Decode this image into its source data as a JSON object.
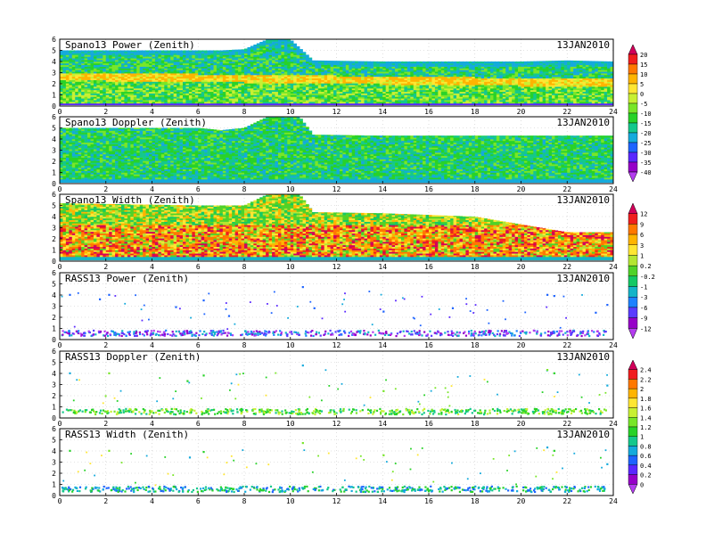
{
  "figure": {
    "date_label": "13JAN2010"
  },
  "chart_data": [
    {
      "type": "heatmap",
      "title": "Spano13 Power (Zenith)",
      "date": "13JAN2010",
      "xlim": [
        0,
        24
      ],
      "ylim": [
        0,
        6
      ],
      "xticks": [
        0,
        2,
        4,
        6,
        8,
        10,
        12,
        14,
        16,
        18,
        20,
        22,
        24
      ],
      "yticks": [
        0,
        1,
        2,
        3,
        4,
        5,
        6
      ],
      "grid": true,
      "colorbar": "power",
      "base_top": [
        [
          0,
          5.0
        ],
        [
          2,
          5.0
        ],
        [
          4,
          5.0
        ],
        [
          6,
          5.0
        ],
        [
          7,
          5.0
        ],
        [
          8,
          5.1
        ],
        [
          9,
          6.0
        ],
        [
          10,
          6.0
        ],
        [
          11,
          4.1
        ],
        [
          14,
          4.0
        ],
        [
          16,
          4.0
        ],
        [
          18,
          4.0
        ],
        [
          20,
          4.0
        ],
        [
          22,
          4.1
        ],
        [
          24,
          4.0
        ]
      ],
      "gaps": [
        [
          [
            8.55,
            8.85
          ],
          [
            4.9,
            6.0
          ]
        ],
        [
          [
            11.2,
            14.0
          ],
          [
            4.1,
            6.0
          ]
        ],
        [
          [
            14.0,
            24.0
          ],
          [
            4.4,
            6.0
          ]
        ]
      ],
      "note": "Band structure: dark blue base near 0.1 km, green-cyan bulk, yellow-orange band ~2.5 km descending to ~2 km"
    },
    {
      "type": "heatmap",
      "title": "Spano13 Doppler (Zenith)",
      "date": "13JAN2010",
      "xlim": [
        0,
        24
      ],
      "ylim": [
        0,
        6
      ],
      "xticks": [
        0,
        2,
        4,
        6,
        8,
        10,
        12,
        14,
        16,
        18,
        20,
        22,
        24
      ],
      "yticks": [
        0,
        1,
        2,
        3,
        4,
        5,
        6
      ],
      "grid": true,
      "colorbar": "power",
      "base_top": [
        [
          0,
          5.0
        ],
        [
          6,
          5.0
        ],
        [
          7,
          4.8
        ],
        [
          8,
          5.0
        ],
        [
          9,
          6.0
        ],
        [
          10.4,
          6.0
        ],
        [
          11,
          4.4
        ],
        [
          14,
          4.3
        ],
        [
          18,
          4.3
        ],
        [
          22,
          4.3
        ],
        [
          24,
          4.3
        ]
      ]
    },
    {
      "type": "heatmap",
      "title": "Spano13 Width (Zenith)",
      "date": "13JAN2010",
      "xlim": [
        0,
        24
      ],
      "ylim": [
        0,
        6
      ],
      "xticks": [
        0,
        2,
        4,
        6,
        8,
        10,
        12,
        14,
        16,
        18,
        20,
        22,
        24
      ],
      "yticks": [
        0,
        1,
        2,
        3,
        4,
        5,
        6
      ],
      "grid": true,
      "colorbar": "width",
      "base_top": [
        [
          0,
          5.2
        ],
        [
          6,
          5.0
        ],
        [
          8,
          5.0
        ],
        [
          9,
          6.0
        ],
        [
          10.4,
          6.0
        ],
        [
          11,
          4.4
        ],
        [
          14,
          4.3
        ],
        [
          18,
          4.0
        ],
        [
          22,
          2.6
        ],
        [
          24,
          2.6
        ]
      ]
    },
    {
      "type": "scatter",
      "title": "RASS13 Power (Zenith)",
      "date": "13JAN2010",
      "xlim": [
        0,
        24
      ],
      "ylim": [
        0,
        6
      ],
      "xticks": [
        0,
        2,
        4,
        6,
        8,
        10,
        12,
        14,
        16,
        18,
        20,
        22,
        24
      ],
      "yticks": [
        0,
        1,
        2,
        3,
        4,
        5,
        6
      ],
      "grid": true,
      "colorbar": "width",
      "band": [
        0.4,
        0.9
      ],
      "points": [
        [
          0.4,
          4.1
        ],
        [
          2.1,
          4.1
        ],
        [
          1.7,
          3.7
        ],
        [
          5.0,
          3.0
        ],
        [
          6.2,
          3.6
        ],
        [
          7.3,
          2.2
        ],
        [
          10.5,
          4.8
        ],
        [
          11.0,
          2.9
        ],
        [
          14.0,
          2.6
        ],
        [
          17.0,
          2.9
        ],
        [
          21.1,
          4.1
        ],
        [
          21.4,
          4.0
        ],
        [
          23.2,
          2.5
        ],
        [
          23.7,
          3.2
        ]
      ]
    },
    {
      "type": "scatter",
      "title": "RASS13 Doppler (Zenith)",
      "date": "13JAN2010",
      "xlim": [
        0,
        24
      ],
      "ylim": [
        0,
        6
      ],
      "xticks": [
        0,
        2,
        4,
        6,
        8,
        10,
        12,
        14,
        16,
        18,
        20,
        22,
        24
      ],
      "yticks": [
        0,
        1,
        2,
        3,
        4,
        5,
        6
      ],
      "grid": true,
      "colorbar": "rass",
      "band": [
        0.4,
        0.9
      ],
      "points": [
        [
          0.4,
          4.1
        ],
        [
          2.1,
          4.1
        ],
        [
          5.5,
          3.4
        ],
        [
          6.2,
          3.9
        ],
        [
          10.5,
          4.8
        ],
        [
          14.0,
          2.5
        ],
        [
          21.1,
          4.4
        ],
        [
          21.4,
          4.1
        ],
        [
          23.7,
          3.0
        ]
      ]
    },
    {
      "type": "scatter",
      "title": "RASS13 Width (Zenith)",
      "date": "13JAN2010",
      "xlim": [
        0,
        24
      ],
      "ylim": [
        0,
        6
      ],
      "xticks": [
        0,
        2,
        4,
        6,
        8,
        10,
        12,
        14,
        16,
        18,
        20,
        22,
        24
      ],
      "yticks": [
        0,
        1,
        2,
        3,
        4,
        5,
        6
      ],
      "grid": true,
      "colorbar": "rass",
      "band": [
        0.4,
        0.9
      ],
      "points": [
        [
          0.4,
          4.1
        ],
        [
          2.1,
          4.1
        ],
        [
          5.6,
          3.5
        ],
        [
          6.2,
          4.0
        ],
        [
          10.5,
          4.8
        ],
        [
          14.0,
          3.7
        ],
        [
          21.1,
          4.4
        ],
        [
          21.4,
          4.1
        ],
        [
          23.7,
          2.9
        ]
      ]
    }
  ],
  "colorbars": {
    "power": {
      "labels": [
        "20",
        "15",
        "10",
        "5",
        "0",
        "-5",
        "-10",
        "-15",
        "-20",
        "-25",
        "-30",
        "-35",
        "-40"
      ],
      "colors": [
        "#d2005a",
        "#f01e1e",
        "#ff7800",
        "#ffb400",
        "#ffe632",
        "#c8f032",
        "#78e628",
        "#28d228",
        "#14c88c",
        "#14aadc",
        "#1e64ff",
        "#5a28ff",
        "#9600c8",
        "#b43cf0"
      ]
    },
    "width": {
      "labels": [
        "12",
        "9",
        "6",
        "3",
        "1",
        "0.2",
        "-0.2",
        "-1",
        "-3",
        "-6",
        "-9",
        "-12"
      ],
      "colors": [
        "#d2005a",
        "#f01e1e",
        "#ff7800",
        "#ffb400",
        "#ffe632",
        "#b4e632",
        "#50d228",
        "#14c864",
        "#14b4c8",
        "#1e82ff",
        "#5a3cff",
        "#9600c8",
        "#b43cf0"
      ]
    },
    "rass": {
      "labels": [
        "2.4",
        "2.2",
        "2",
        "1.8",
        "1.6",
        "1.4",
        "1.2",
        "1",
        "0.8",
        "0.6",
        "0.4",
        "0.2",
        "0"
      ],
      "colors": [
        "#d2005a",
        "#f01e1e",
        "#ff7800",
        "#ffb400",
        "#ffe632",
        "#c8f032",
        "#78e628",
        "#28d228",
        "#14c88c",
        "#14aadc",
        "#1e64ff",
        "#5a28ff",
        "#9600c8",
        "#b43cf0"
      ]
    }
  }
}
